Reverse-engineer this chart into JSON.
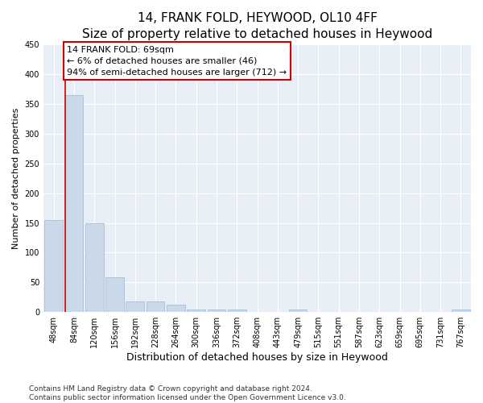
{
  "title": "14, FRANK FOLD, HEYWOOD, OL10 4FF",
  "subtitle": "Size of property relative to detached houses in Heywood",
  "xlabel": "Distribution of detached houses by size in Heywood",
  "ylabel": "Number of detached properties",
  "categories": [
    "48sqm",
    "84sqm",
    "120sqm",
    "156sqm",
    "192sqm",
    "228sqm",
    "264sqm",
    "300sqm",
    "336sqm",
    "372sqm",
    "408sqm",
    "443sqm",
    "479sqm",
    "515sqm",
    "551sqm",
    "587sqm",
    "623sqm",
    "659sqm",
    "695sqm",
    "731sqm",
    "767sqm"
  ],
  "values": [
    155,
    365,
    150,
    58,
    18,
    18,
    13,
    5,
    4,
    5,
    0,
    0,
    4,
    0,
    0,
    0,
    0,
    0,
    0,
    0,
    4
  ],
  "bar_color": "#c9d9ea",
  "bar_edge_color": "#a8bfd4",
  "annotation_box_text": "14 FRANK FOLD: 69sqm\n← 6% of detached houses are smaller (46)\n94% of semi-detached houses are larger (712) →",
  "annotation_box_color": "#ffffff",
  "annotation_box_edge_color": "#cc0000",
  "ylim": [
    0,
    450
  ],
  "yticks": [
    0,
    50,
    100,
    150,
    200,
    250,
    300,
    350,
    400,
    450
  ],
  "vline_color": "#cc0000",
  "vline_x_index": 0,
  "background_color": "#e8eef5",
  "footer_text": "Contains HM Land Registry data © Crown copyright and database right 2024.\nContains public sector information licensed under the Open Government Licence v3.0.",
  "title_fontsize": 11,
  "subtitle_fontsize": 9.5,
  "xlabel_fontsize": 9,
  "ylabel_fontsize": 8,
  "tick_fontsize": 7,
  "footer_fontsize": 6.5,
  "annot_fontsize": 8
}
